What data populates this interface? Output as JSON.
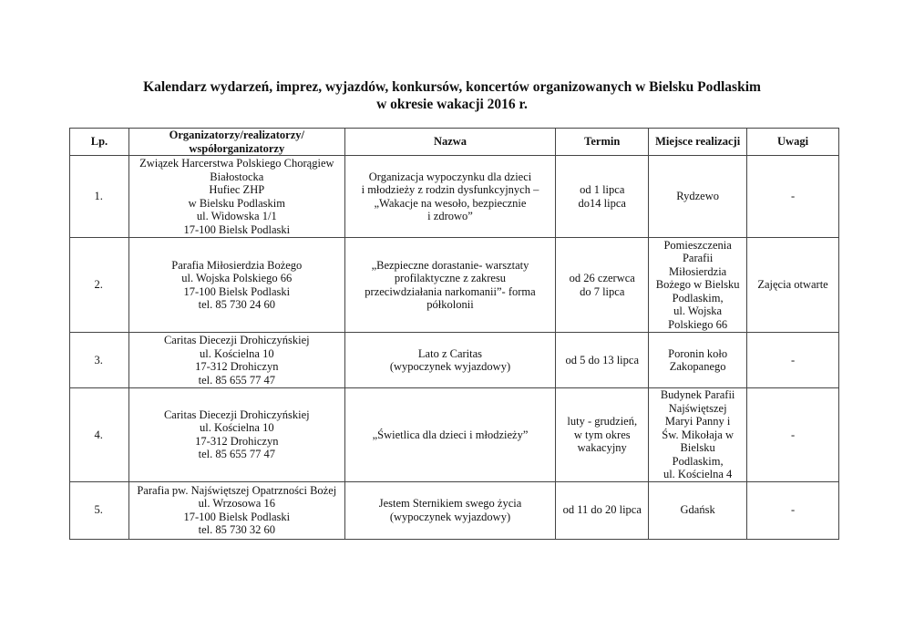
{
  "title": {
    "line1": "Kalendarz wydarzeń, imprez, wyjazdów, konkursów, koncertów organizowanych w Bielsku Podlaskim",
    "line2": "w okresie wakacji 2016 r."
  },
  "table": {
    "headers": [
      "Lp.",
      "Organizatorzy/realizatorzy/\nwspółorganizatorzy",
      "Nazwa",
      "Termin",
      "Miejsce realizacji",
      "Uwagi"
    ],
    "rows": [
      {
        "lp": "1.",
        "org": "Związek Harcerstwa Polskiego Chorągiew\nBiałostocka\nHufiec ZHP\nw Bielsku Podlaskim\nul. Widowska 1/1\n17-100 Bielsk Podlaski",
        "nazwa": "Organizacja wypoczynku dla dzieci\ni młodzieży z rodzin dysfunkcyjnych –\n„Wakacje na wesoło, bezpiecznie\ni zdrowo”",
        "termin": "od 1 lipca\ndo14 lipca",
        "miejsce": "Rydzewo",
        "uwagi": "-"
      },
      {
        "lp": "2.",
        "org": "Parafia Miłosierdzia Bożego\nul. Wojska Polskiego 66\n17-100 Bielsk Podlaski\ntel. 85 730 24 60",
        "nazwa": "„Bezpieczne dorastanie- warsztaty\nprofilaktyczne z zakresu\nprzeciwdziałania narkomanii”- forma\npółkolonii",
        "termin": "od 26 czerwca\ndo 7 lipca",
        "miejsce": "Pomieszczenia\nParafii\nMiłosierdzia\nBożego w Bielsku\nPodlaskim,\nul. Wojska\nPolskiego 66",
        "uwagi": "Zajęcia otwarte"
      },
      {
        "lp": "3.",
        "org": "Caritas Diecezji Drohiczyńskiej\nul. Kościelna 10\n17-312 Drohiczyn\ntel. 85 655 77 47",
        "nazwa": "Lato z Caritas\n(wypoczynek wyjazdowy)",
        "termin": "od 5 do 13 lipca",
        "miejsce": "Poronin koło\nZakopanego",
        "uwagi": "-"
      },
      {
        "lp": "4.",
        "org": "Caritas Diecezji Drohiczyńskiej\nul. Kościelna 10\n17-312 Drohiczyn\ntel. 85 655 77 47",
        "nazwa": "„Świetlica dla dzieci i młodzieży”",
        "termin": "luty - grudzień,\nw tym okres\nwakacyjny",
        "miejsce": "Budynek Parafii\nNajświętszej\nMaryi Panny i\nŚw. Mikołaja w\nBielsku\nPodlaskim,\nul. Kościelna 4",
        "uwagi": "-"
      },
      {
        "lp": "5.",
        "org": "Parafia pw. Najświętszej Opatrzności Bożej\nul. Wrzosowa 16\n17-100 Bielsk Podlaski\ntel. 85 730 32 60",
        "nazwa": "Jestem Sternikiem swego życia\n(wypoczynek wyjazdowy)",
        "termin": "od 11 do 20 lipca",
        "miejsce": "Gdańsk",
        "uwagi": "-"
      }
    ]
  }
}
